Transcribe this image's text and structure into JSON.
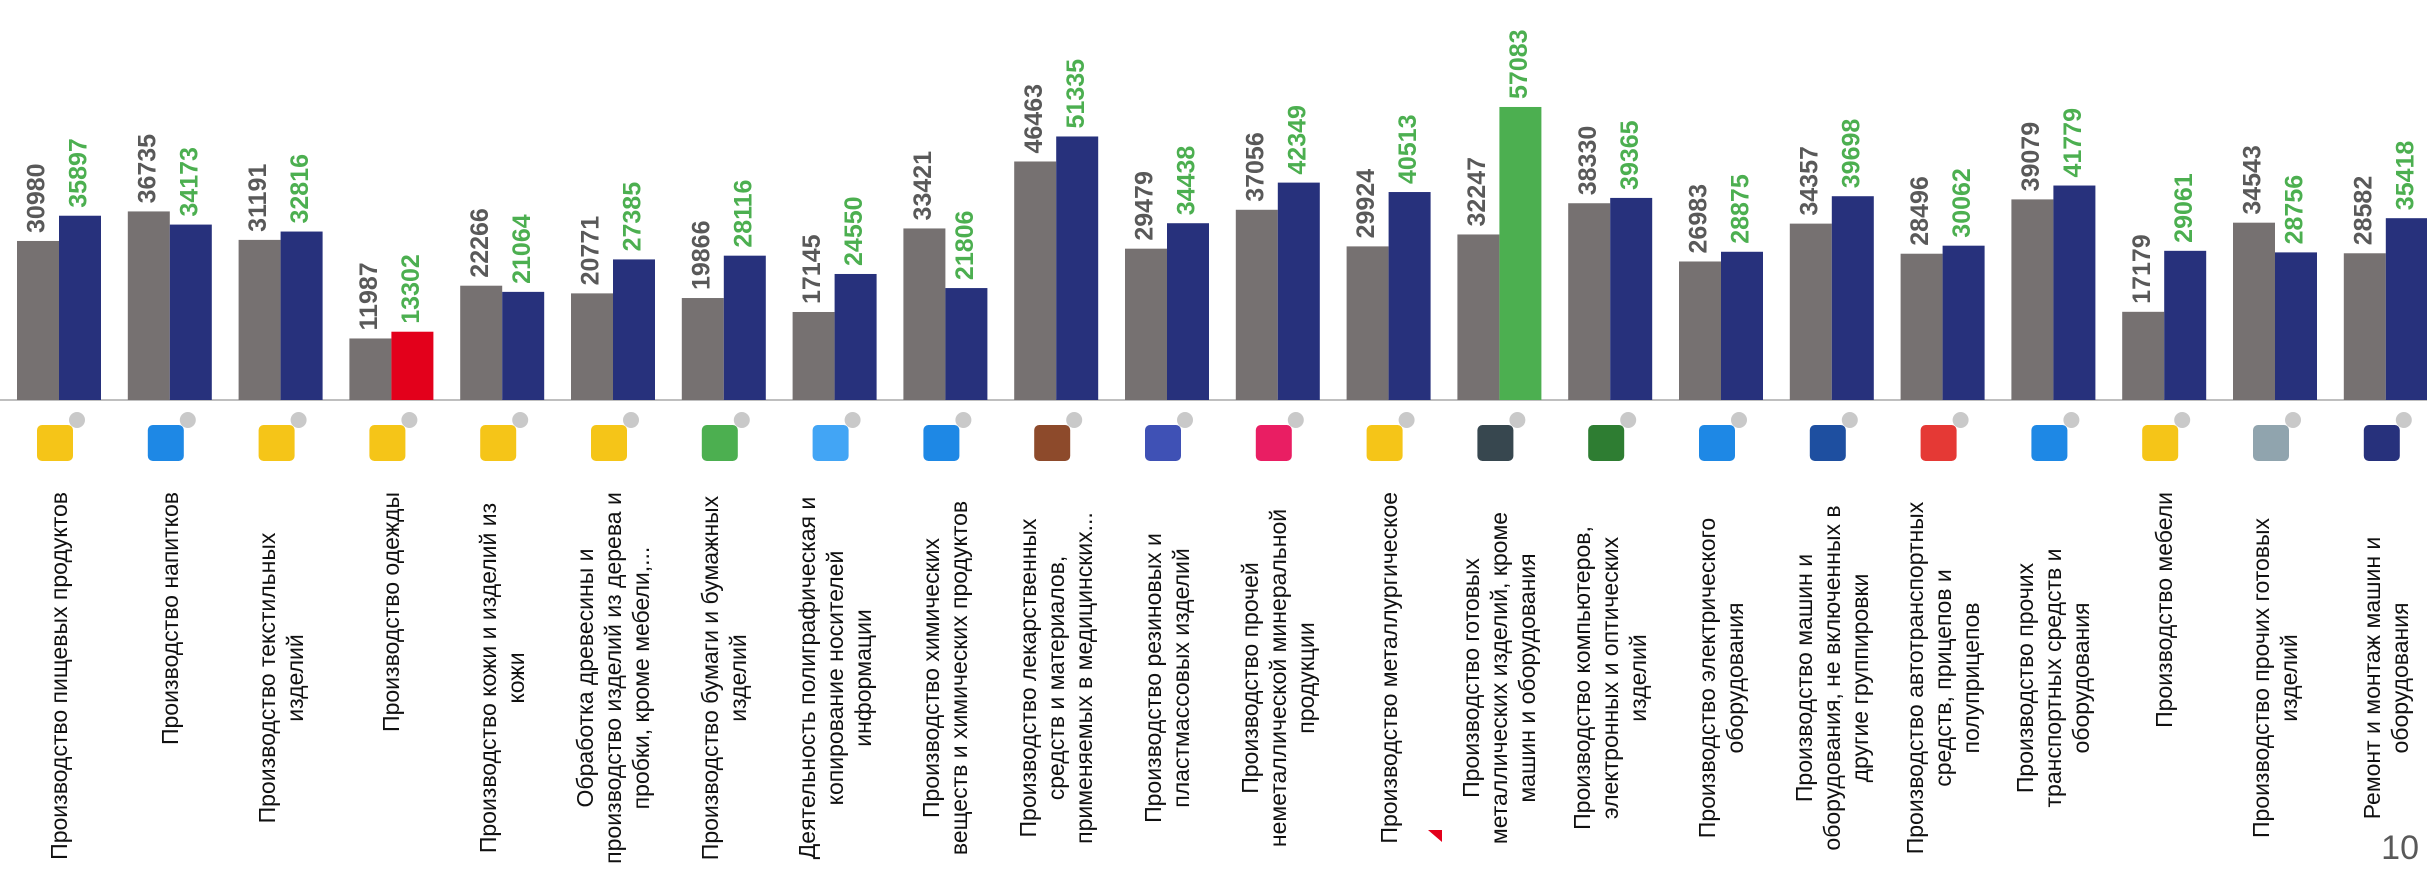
{
  "chart_data": {
    "type": "bar",
    "categories": [
      "Производство пищевых продуктов",
      "Производство напитков",
      "Производство текстильных изделий",
      "Производство одежды",
      "Производство кожи и изделий из кожи",
      "Обработка древесины и производство изделий из дерева и пробки, кроме мебели,...",
      "Производство бумаги и бумажных изделий",
      "Деятельность полиграфическая и копирование носителей информации",
      "Производство химических веществ и химических продуктов",
      "Производство лекарственных средств и материалов, применяемых в медицинских...",
      "Производство резиновых и пластмассовых изделий",
      "Производство прочей неметаллической минеральной продукции",
      "Производство металлургическое",
      "Производство готовых металлических изделий, кроме машин и оборудования",
      "Производство компьютеров, электронных и оптических изделий",
      "Производство электрического оборудования",
      "Производство машин и оборудования, не включенных в другие группировки",
      "Производство автотранспортных средств, прицепов и полуприцепов",
      "Производство прочих транспортных средств и оборудования",
      "Производство мебели",
      "Производство прочих готовых изделий",
      "Ремонт и монтаж машин и оборудования"
    ],
    "series": [
      {
        "color": "#767171",
        "label_color": "#595959",
        "values": [
          30980,
          36735,
          31191,
          11987,
          22266,
          20771,
          19866,
          17145,
          33421,
          46463,
          29479,
          37056,
          29924,
          32247,
          38330,
          26983,
          34357,
          28496,
          39079,
          17179,
          34543,
          28582
        ]
      },
      {
        "color": "#27317c",
        "label_color": "#4caf50",
        "colors": [
          "#27317c",
          "#27317c",
          "#27317c",
          "#e3001b",
          "#27317c",
          "#27317c",
          "#27317c",
          "#27317c",
          "#27317c",
          "#27317c",
          "#27317c",
          "#27317c",
          "#27317c",
          "#4caf50",
          "#27317c",
          "#27317c",
          "#27317c",
          "#27317c",
          "#27317c",
          "#27317c",
          "#27317c",
          "#27317c"
        ],
        "values": [
          35897,
          34173,
          32816,
          13302,
          21064,
          27385,
          28116,
          24550,
          21806,
          51335,
          34438,
          42349,
          40513,
          57083,
          39365,
          28875,
          39698,
          30062,
          41779,
          29061,
          28756,
          35418
        ]
      }
    ],
    "ylim": [
      0,
      60000
    ]
  },
  "page_number": "10"
}
